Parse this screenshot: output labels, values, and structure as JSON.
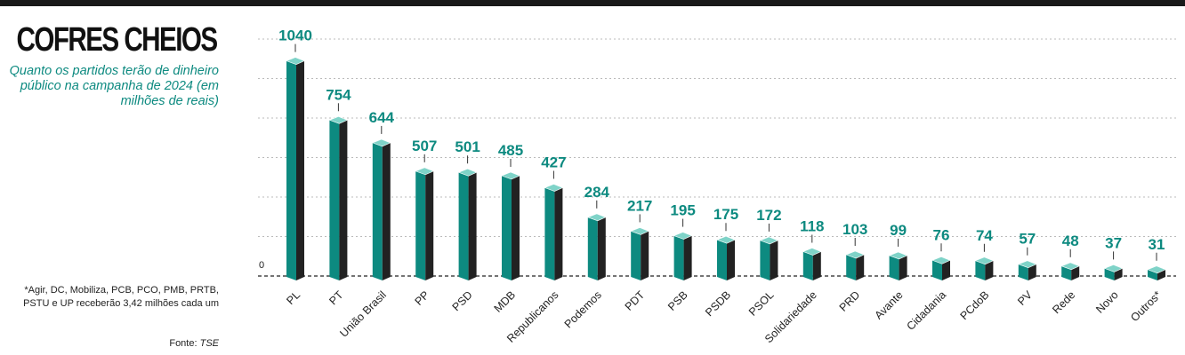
{
  "header": {
    "title": "COFRES CHEIOS",
    "subtitle": "Quanto os partidos terão de dinheiro público na campanha de 2024 (em milhões de reais)"
  },
  "footnote": "*Agir, DC, Mobiliza, PCB, PCO, PMB, PRTB, PSTU e UP receberão 3,42 milhões cada um",
  "source": {
    "label": "Fonte:",
    "name": "TSE"
  },
  "colors": {
    "bar_front": "#0d8a80",
    "bar_side": "#222222",
    "bar_top": "#7fd3c8",
    "value_text": "#0d8a80",
    "grid": "#bbbbbb"
  },
  "chart_data": {
    "type": "bar",
    "title": "COFRES CHEIOS",
    "subtitle": "Quanto os partidos terão de dinheiro público na campanha de 2024 (em milhões de reais)",
    "xlabel": "",
    "ylabel": "",
    "y_tick_label": "0",
    "ylim": [
      0,
      1150
    ],
    "grid": true,
    "categories": [
      "PL",
      "PT",
      "União Brasil",
      "PP",
      "PSD",
      "MDB",
      "Republicanos",
      "Podemos",
      "PDT",
      "PSB",
      "PSDB",
      "PSOL",
      "Solidariedade",
      "PRD",
      "Avante",
      "Cidadania",
      "PCdoB",
      "PV",
      "Rede",
      "Novo",
      "Outros*"
    ],
    "values": [
      1040,
      754,
      644,
      507,
      501,
      485,
      427,
      284,
      217,
      195,
      175,
      172,
      118,
      103,
      99,
      76,
      74,
      57,
      48,
      37,
      31
    ]
  }
}
